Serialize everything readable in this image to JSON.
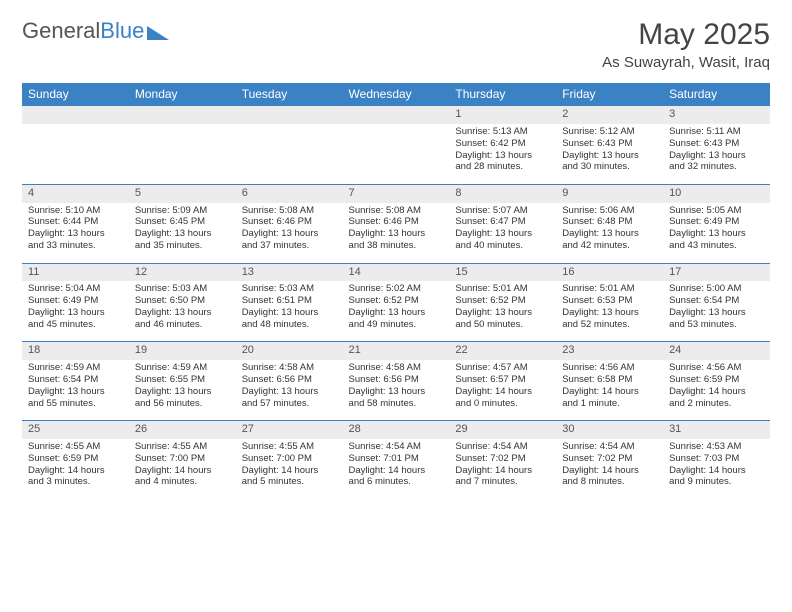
{
  "brand": {
    "part1": "General",
    "part2": "Blue"
  },
  "title": "May 2025",
  "location": "As Suwayrah, Wasit, Iraq",
  "colors": {
    "header_bg": "#3b82c4",
    "header_fg": "#ffffff",
    "daynum_bg": "#ececec",
    "rule": "#3b82c4"
  },
  "weekdays": [
    "Sunday",
    "Monday",
    "Tuesday",
    "Wednesday",
    "Thursday",
    "Friday",
    "Saturday"
  ],
  "weeks": [
    [
      {
        "n": "",
        "sr": "",
        "ss": "",
        "dl": ""
      },
      {
        "n": "",
        "sr": "",
        "ss": "",
        "dl": ""
      },
      {
        "n": "",
        "sr": "",
        "ss": "",
        "dl": ""
      },
      {
        "n": "",
        "sr": "",
        "ss": "",
        "dl": ""
      },
      {
        "n": "1",
        "sr": "Sunrise: 5:13 AM",
        "ss": "Sunset: 6:42 PM",
        "dl": "Daylight: 13 hours and 28 minutes."
      },
      {
        "n": "2",
        "sr": "Sunrise: 5:12 AM",
        "ss": "Sunset: 6:43 PM",
        "dl": "Daylight: 13 hours and 30 minutes."
      },
      {
        "n": "3",
        "sr": "Sunrise: 5:11 AM",
        "ss": "Sunset: 6:43 PM",
        "dl": "Daylight: 13 hours and 32 minutes."
      }
    ],
    [
      {
        "n": "4",
        "sr": "Sunrise: 5:10 AM",
        "ss": "Sunset: 6:44 PM",
        "dl": "Daylight: 13 hours and 33 minutes."
      },
      {
        "n": "5",
        "sr": "Sunrise: 5:09 AM",
        "ss": "Sunset: 6:45 PM",
        "dl": "Daylight: 13 hours and 35 minutes."
      },
      {
        "n": "6",
        "sr": "Sunrise: 5:08 AM",
        "ss": "Sunset: 6:46 PM",
        "dl": "Daylight: 13 hours and 37 minutes."
      },
      {
        "n": "7",
        "sr": "Sunrise: 5:08 AM",
        "ss": "Sunset: 6:46 PM",
        "dl": "Daylight: 13 hours and 38 minutes."
      },
      {
        "n": "8",
        "sr": "Sunrise: 5:07 AM",
        "ss": "Sunset: 6:47 PM",
        "dl": "Daylight: 13 hours and 40 minutes."
      },
      {
        "n": "9",
        "sr": "Sunrise: 5:06 AM",
        "ss": "Sunset: 6:48 PM",
        "dl": "Daylight: 13 hours and 42 minutes."
      },
      {
        "n": "10",
        "sr": "Sunrise: 5:05 AM",
        "ss": "Sunset: 6:49 PM",
        "dl": "Daylight: 13 hours and 43 minutes."
      }
    ],
    [
      {
        "n": "11",
        "sr": "Sunrise: 5:04 AM",
        "ss": "Sunset: 6:49 PM",
        "dl": "Daylight: 13 hours and 45 minutes."
      },
      {
        "n": "12",
        "sr": "Sunrise: 5:03 AM",
        "ss": "Sunset: 6:50 PM",
        "dl": "Daylight: 13 hours and 46 minutes."
      },
      {
        "n": "13",
        "sr": "Sunrise: 5:03 AM",
        "ss": "Sunset: 6:51 PM",
        "dl": "Daylight: 13 hours and 48 minutes."
      },
      {
        "n": "14",
        "sr": "Sunrise: 5:02 AM",
        "ss": "Sunset: 6:52 PM",
        "dl": "Daylight: 13 hours and 49 minutes."
      },
      {
        "n": "15",
        "sr": "Sunrise: 5:01 AM",
        "ss": "Sunset: 6:52 PM",
        "dl": "Daylight: 13 hours and 50 minutes."
      },
      {
        "n": "16",
        "sr": "Sunrise: 5:01 AM",
        "ss": "Sunset: 6:53 PM",
        "dl": "Daylight: 13 hours and 52 minutes."
      },
      {
        "n": "17",
        "sr": "Sunrise: 5:00 AM",
        "ss": "Sunset: 6:54 PM",
        "dl": "Daylight: 13 hours and 53 minutes."
      }
    ],
    [
      {
        "n": "18",
        "sr": "Sunrise: 4:59 AM",
        "ss": "Sunset: 6:54 PM",
        "dl": "Daylight: 13 hours and 55 minutes."
      },
      {
        "n": "19",
        "sr": "Sunrise: 4:59 AM",
        "ss": "Sunset: 6:55 PM",
        "dl": "Daylight: 13 hours and 56 minutes."
      },
      {
        "n": "20",
        "sr": "Sunrise: 4:58 AM",
        "ss": "Sunset: 6:56 PM",
        "dl": "Daylight: 13 hours and 57 minutes."
      },
      {
        "n": "21",
        "sr": "Sunrise: 4:58 AM",
        "ss": "Sunset: 6:56 PM",
        "dl": "Daylight: 13 hours and 58 minutes."
      },
      {
        "n": "22",
        "sr": "Sunrise: 4:57 AM",
        "ss": "Sunset: 6:57 PM",
        "dl": "Daylight: 14 hours and 0 minutes."
      },
      {
        "n": "23",
        "sr": "Sunrise: 4:56 AM",
        "ss": "Sunset: 6:58 PM",
        "dl": "Daylight: 14 hours and 1 minute."
      },
      {
        "n": "24",
        "sr": "Sunrise: 4:56 AM",
        "ss": "Sunset: 6:59 PM",
        "dl": "Daylight: 14 hours and 2 minutes."
      }
    ],
    [
      {
        "n": "25",
        "sr": "Sunrise: 4:55 AM",
        "ss": "Sunset: 6:59 PM",
        "dl": "Daylight: 14 hours and 3 minutes."
      },
      {
        "n": "26",
        "sr": "Sunrise: 4:55 AM",
        "ss": "Sunset: 7:00 PM",
        "dl": "Daylight: 14 hours and 4 minutes."
      },
      {
        "n": "27",
        "sr": "Sunrise: 4:55 AM",
        "ss": "Sunset: 7:00 PM",
        "dl": "Daylight: 14 hours and 5 minutes."
      },
      {
        "n": "28",
        "sr": "Sunrise: 4:54 AM",
        "ss": "Sunset: 7:01 PM",
        "dl": "Daylight: 14 hours and 6 minutes."
      },
      {
        "n": "29",
        "sr": "Sunrise: 4:54 AM",
        "ss": "Sunset: 7:02 PM",
        "dl": "Daylight: 14 hours and 7 minutes."
      },
      {
        "n": "30",
        "sr": "Sunrise: 4:54 AM",
        "ss": "Sunset: 7:02 PM",
        "dl": "Daylight: 14 hours and 8 minutes."
      },
      {
        "n": "31",
        "sr": "Sunrise: 4:53 AM",
        "ss": "Sunset: 7:03 PM",
        "dl": "Daylight: 14 hours and 9 minutes."
      }
    ]
  ]
}
